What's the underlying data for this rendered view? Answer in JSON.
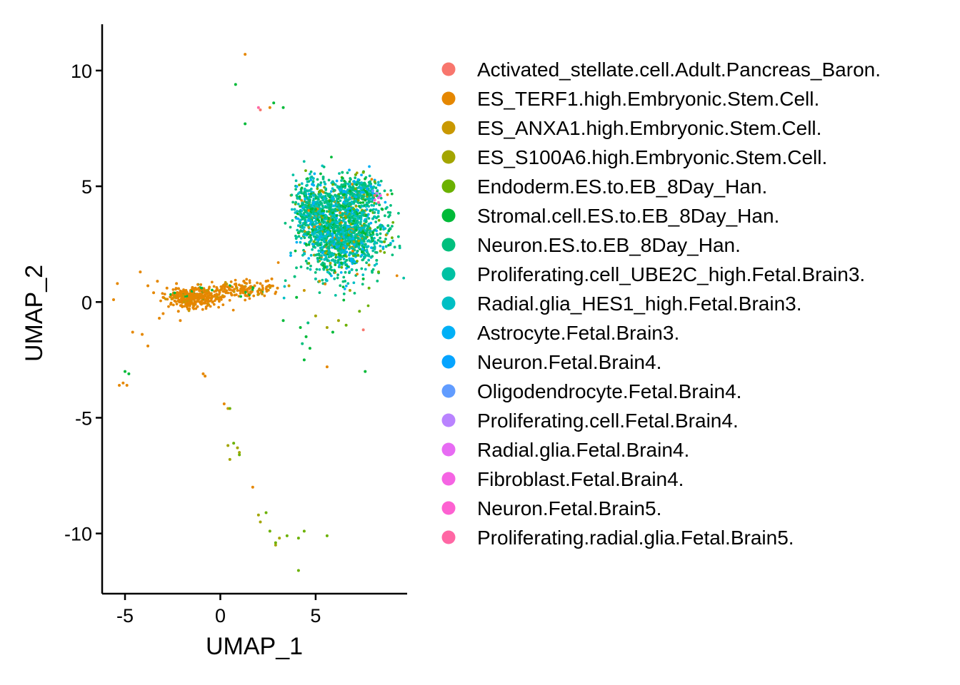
{
  "chart_data": {
    "type": "scatter",
    "xlabel": "UMAP_1",
    "ylabel": "UMAP_2",
    "xlim": [
      -6.2,
      9.8
    ],
    "ylim": [
      -12.6,
      12.0
    ],
    "x_ticks": [
      -5,
      0,
      5
    ],
    "y_ticks": [
      10,
      5,
      0,
      -5,
      -10
    ],
    "x_tick_labels": [
      "-5",
      "0",
      "5"
    ],
    "y_tick_labels": [
      "10",
      "5",
      "0",
      "-5",
      "-10"
    ],
    "grid": false,
    "legend_position": "right",
    "series": [
      {
        "name": "Activated_stellate.cell.Adult.Pancreas_Baron.",
        "color": "#F8766D",
        "points": [
          [
            7.5,
            -1.2
          ],
          [
            2.1,
            8.3
          ],
          [
            8.1,
            4.6
          ]
        ]
      },
      {
        "name": "ES_TERF1.high.Embryonic.Stem.Cell.",
        "color": "#E58700",
        "points": [
          [
            -5.4,
            0.8
          ],
          [
            -5.6,
            0.1
          ],
          [
            -4.2,
            1.3
          ],
          [
            -3.8,
            0.7
          ],
          [
            -3.5,
            0.4
          ],
          [
            -3.3,
            0.9
          ],
          [
            -3.0,
            0.2
          ],
          [
            -2.8,
            0.6
          ],
          [
            -2.6,
            -0.1
          ],
          [
            -2.5,
            0.3
          ],
          [
            -2.3,
            0.8
          ],
          [
            -2.2,
            -0.4
          ],
          [
            -2.0,
            0.1
          ],
          [
            -1.8,
            0.5
          ],
          [
            -1.7,
            -0.3
          ],
          [
            -1.5,
            0.2
          ],
          [
            -1.3,
            0.6
          ],
          [
            -1.2,
            -0.2
          ],
          [
            -1.0,
            0.3
          ],
          [
            -0.8,
            0.1
          ],
          [
            -0.6,
            0.4
          ],
          [
            -0.4,
            0.0
          ],
          [
            -0.2,
            0.3
          ],
          [
            0.0,
            0.2
          ],
          [
            0.3,
            0.4
          ],
          [
            0.6,
            0.3
          ],
          [
            0.9,
            0.5
          ],
          [
            1.2,
            0.4
          ],
          [
            1.5,
            0.6
          ],
          [
            1.8,
            0.7
          ],
          [
            2.1,
            0.8
          ],
          [
            2.4,
            0.9
          ],
          [
            2.7,
            1.0
          ],
          [
            3.0,
            0.6
          ],
          [
            -3.2,
            -0.7
          ],
          [
            -3.0,
            -0.5
          ],
          [
            -2.1,
            -0.8
          ],
          [
            -4.6,
            -1.3
          ],
          [
            -4.1,
            -1.4
          ],
          [
            -3.8,
            -1.9
          ],
          [
            -4.9,
            -3.6
          ],
          [
            -5.1,
            -3.5
          ],
          [
            -5.3,
            -3.6
          ],
          [
            -0.9,
            -3.1
          ],
          [
            -0.8,
            -3.2
          ],
          [
            0.2,
            -4.4
          ],
          [
            1.7,
            -8.0
          ],
          [
            5.6,
            -2.8
          ],
          [
            1.3,
            10.7
          ],
          [
            2.6,
            8.4
          ]
        ]
      },
      {
        "name": "ES_ANXA1.high.Embryonic.Stem.Cell.",
        "color": "#C99800",
        "points": [
          [
            -2.4,
            0.2
          ],
          [
            -1.9,
            0.0
          ],
          [
            -0.7,
            0.5
          ],
          [
            0.4,
            -4.6
          ],
          [
            3.6,
            0.7
          ],
          [
            4.4,
            0.5
          ],
          [
            5.2,
            0.9
          ]
        ]
      },
      {
        "name": "ES_S100A6.high.Embryonic.Stem.Cell.",
        "color": "#A3A500",
        "points": [
          [
            0.4,
            -6.2
          ],
          [
            0.5,
            -6.8
          ],
          [
            0.9,
            -6.3
          ],
          [
            1.0,
            -6.5
          ],
          [
            2.0,
            -9.2
          ],
          [
            2.1,
            -9.5
          ],
          [
            2.9,
            -10.5
          ],
          [
            3.1,
            -10.2
          ],
          [
            5.0,
            -0.6
          ],
          [
            5.6,
            -1.1
          ],
          [
            6.2,
            -0.8
          ],
          [
            6.8,
            0.5
          ],
          [
            7.8,
            1.6
          ],
          [
            8.4,
            2.2
          ],
          [
            8.7,
            2.9
          ]
        ]
      },
      {
        "name": "Endoderm.ES.to.EB_8Day_Han.",
        "color": "#6BB100",
        "points": [
          [
            0.5,
            -4.6
          ],
          [
            0.7,
            -6.1
          ],
          [
            1.0,
            -6.6
          ],
          [
            2.4,
            -9.1
          ],
          [
            2.6,
            -9.9
          ],
          [
            2.9,
            -10.4
          ],
          [
            3.5,
            -10.1
          ],
          [
            4.1,
            -10.2
          ],
          [
            4.1,
            -11.6
          ],
          [
            4.4,
            -9.9
          ],
          [
            5.6,
            -10.1
          ],
          [
            6.6,
            -1.0
          ],
          [
            7.3,
            -0.4
          ],
          [
            7.8,
            0.6
          ],
          [
            8.3,
            1.3
          ],
          [
            8.6,
            2.6
          ],
          [
            7.1,
            5.5
          ],
          [
            7.5,
            5.6
          ],
          [
            8.1,
            5.2
          ]
        ]
      },
      {
        "name": "Stromal.cell.ES.to.EB_8Day_Han.",
        "color": "#00BA38",
        "points": [
          [
            -5.0,
            -3.0
          ],
          [
            -4.8,
            -3.1
          ],
          [
            2.8,
            8.6
          ],
          [
            3.3,
            8.4
          ],
          [
            1.3,
            7.7
          ],
          [
            0.8,
            9.4
          ],
          [
            4.2,
            -1.1
          ],
          [
            4.5,
            -1.5
          ],
          [
            4.7,
            -2.0
          ],
          [
            5.9,
            -1.3
          ],
          [
            4.4,
            -2.5
          ],
          [
            7.6,
            -3.0
          ],
          [
            3.3,
            -0.8
          ],
          [
            4.0,
            0.2
          ],
          [
            5.5,
            1.5
          ],
          [
            6.0,
            3.0
          ],
          [
            6.5,
            2.0
          ],
          [
            7.0,
            3.5
          ],
          [
            7.5,
            1.0
          ],
          [
            8.0,
            3.0
          ],
          [
            8.5,
            4.0
          ],
          [
            5.0,
            4.0
          ],
          [
            4.5,
            2.5
          ],
          [
            6.8,
            4.8
          ],
          [
            7.6,
            4.4
          ]
        ]
      },
      {
        "name": "Neuron.ES.to.EB_8Day_Han.",
        "color": "#00BF7D",
        "points": [
          [
            4.6,
            -0.9
          ],
          [
            4.3,
            -1.8
          ],
          [
            3.9,
            1.1
          ],
          [
            4.3,
            4.2
          ],
          [
            5.2,
            3.2
          ],
          [
            5.7,
            4.6
          ],
          [
            6.2,
            2.5
          ],
          [
            7.2,
            2.2
          ],
          [
            8.2,
            1.8
          ],
          [
            8.8,
            3.3
          ],
          [
            5.4,
            5.4
          ],
          [
            6.4,
            5.6
          ]
        ]
      },
      {
        "name": "Proliferating.cell_UBE2C_high.Fetal.Brain3.",
        "color": "#00C1A3",
        "points": [
          [
            4.2,
            3.8
          ],
          [
            4.0,
            2.8
          ],
          [
            4.6,
            4.8
          ],
          [
            5.3,
            2.0
          ],
          [
            5.9,
            5.2
          ],
          [
            6.6,
            3.8
          ],
          [
            7.3,
            4.6
          ],
          [
            8.0,
            3.6
          ],
          [
            8.7,
            2.4
          ],
          [
            5.0,
            1.0
          ],
          [
            6.9,
            1.4
          ]
        ]
      },
      {
        "name": "Radial.glia_HES1_high.Fetal.Brain3.",
        "color": "#00BFC4",
        "points": [
          [
            3.9,
            4.0
          ],
          [
            4.1,
            3.3
          ],
          [
            4.4,
            2.1
          ],
          [
            4.9,
            4.6
          ],
          [
            5.5,
            5.1
          ],
          [
            6.1,
            4.2
          ],
          [
            6.7,
            5.1
          ],
          [
            7.4,
            3.2
          ],
          [
            8.1,
            2.6
          ]
        ]
      },
      {
        "name": "Astrocyte.Fetal.Brain3.",
        "color": "#00B0F6",
        "points": [
          [
            7.7,
            4.9
          ],
          [
            8.0,
            4.7
          ]
        ]
      },
      {
        "name": "Neuron.Fetal.Brain4.",
        "color": "#06A4FF",
        "points": [
          [
            7.9,
            5.0
          ]
        ]
      },
      {
        "name": "Oligodendrocyte.Fetal.Brain4.",
        "color": "#619CFF",
        "points": [
          [
            8.0,
            4.8
          ]
        ]
      },
      {
        "name": "Proliferating.cell.Fetal.Brain4.",
        "color": "#B983FF",
        "points": [
          [
            8.2,
            4.7
          ]
        ]
      },
      {
        "name": "Radial.glia.Fetal.Brain4.",
        "color": "#E76BF3",
        "points": [
          [
            8.3,
            4.5
          ]
        ]
      },
      {
        "name": "Fibroblast.Fetal.Brain4.",
        "color": "#F564E3",
        "points": [
          [
            8.4,
            4.6
          ]
        ]
      },
      {
        "name": "Neuron.Fetal.Brain5.",
        "color": "#FD61D1",
        "points": [
          [
            8.1,
            4.4
          ]
        ]
      },
      {
        "name": "Proliferating.radial.glia.Fetal.Brain5.",
        "color": "#FF67A4",
        "points": [
          [
            8.3,
            4.3
          ],
          [
            2.0,
            8.4
          ]
        ]
      }
    ],
    "clusters": [
      {
        "center": [
          6.4,
          3.0
        ],
        "spread": [
          1.35,
          1.15
        ],
        "count": 1400
      },
      {
        "center": [
          4.8,
          4.0
        ],
        "spread": [
          0.65,
          0.9
        ],
        "count": 380
      },
      {
        "center": [
          7.1,
          4.7
        ],
        "spread": [
          0.9,
          0.45
        ],
        "count": 300
      },
      {
        "center": [
          -1.4,
          0.2
        ],
        "spread": [
          0.9,
          0.3
        ],
        "count": 320
      },
      {
        "center": [
          1.2,
          0.55
        ],
        "spread": [
          1.2,
          0.25
        ],
        "count": 160
      }
    ]
  }
}
